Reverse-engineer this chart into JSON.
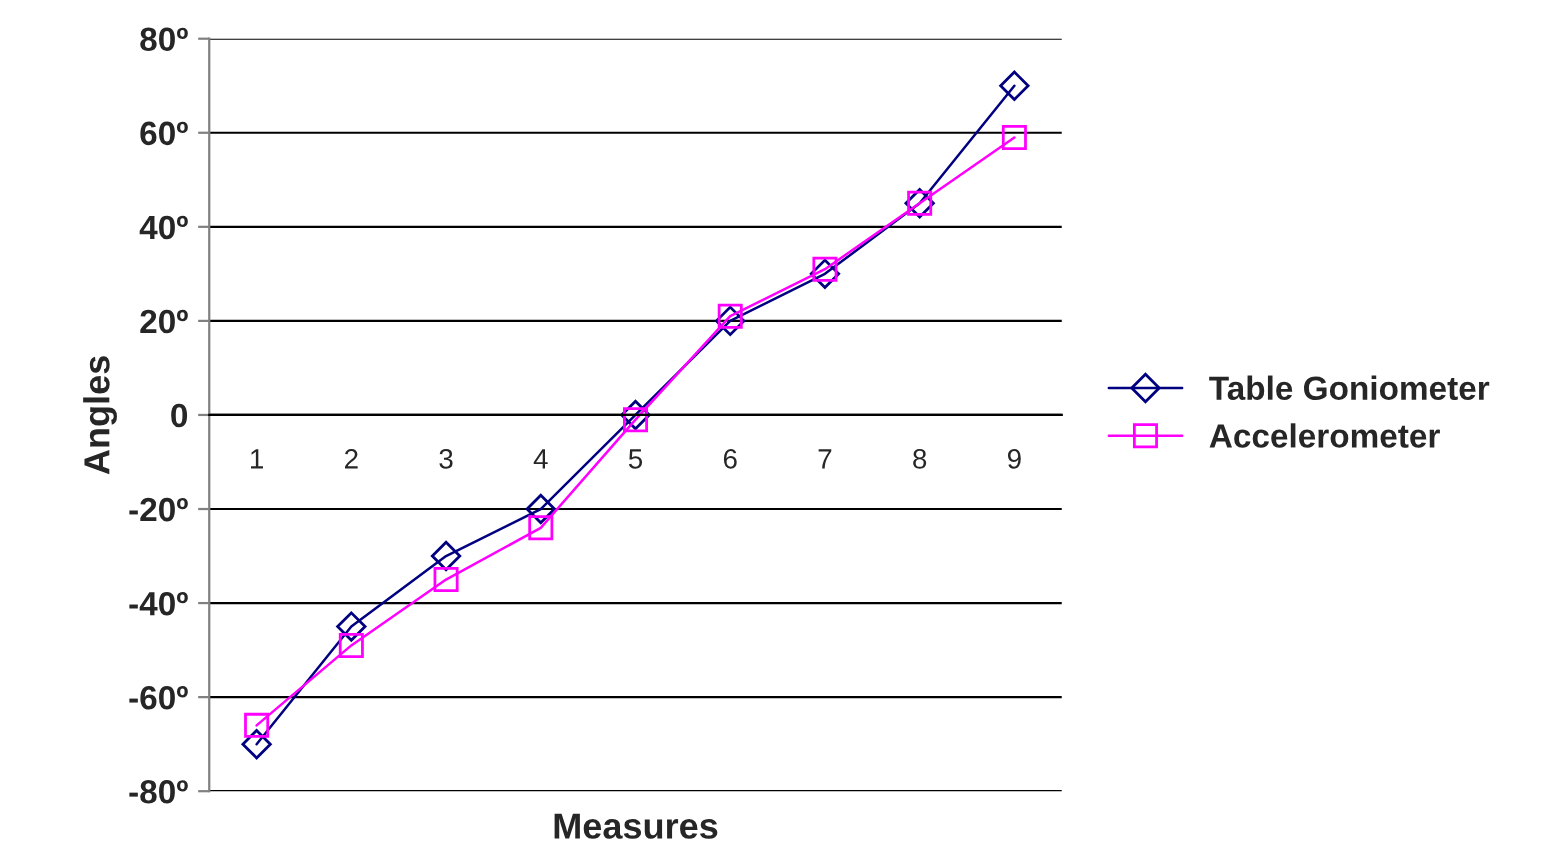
{
  "chart_data": {
    "type": "line",
    "xlabel": "Measures",
    "ylabel": "Angles",
    "categories": [
      "1",
      "2",
      "3",
      "4",
      "5",
      "6",
      "7",
      "8",
      "9"
    ],
    "series": [
      {
        "name": "Table Goniometer",
        "color": "#000080",
        "marker": "diamond",
        "values": [
          -70,
          -45,
          -30,
          -20,
          0,
          20,
          30,
          45,
          70
        ]
      },
      {
        "name": "Accelerometer",
        "color": "#ff00ff",
        "marker": "square",
        "values": [
          -66,
          -49,
          -35,
          -24,
          -1,
          21,
          31,
          45,
          59
        ]
      }
    ],
    "ylim": [
      -80,
      80
    ],
    "yticks": [
      {
        "value": -80,
        "label": "-80º"
      },
      {
        "value": -60,
        "label": "-60º"
      },
      {
        "value": -40,
        "label": "-40º"
      },
      {
        "value": -20,
        "label": "-20º"
      },
      0,
      {
        "value": 20,
        "label": "20º"
      },
      {
        "value": 40,
        "label": "40º"
      },
      {
        "value": 60,
        "label": "60º"
      },
      {
        "value": 80,
        "label": "80º"
      }
    ],
    "grid": "y",
    "legend": "right",
    "line_style": "solid"
  }
}
